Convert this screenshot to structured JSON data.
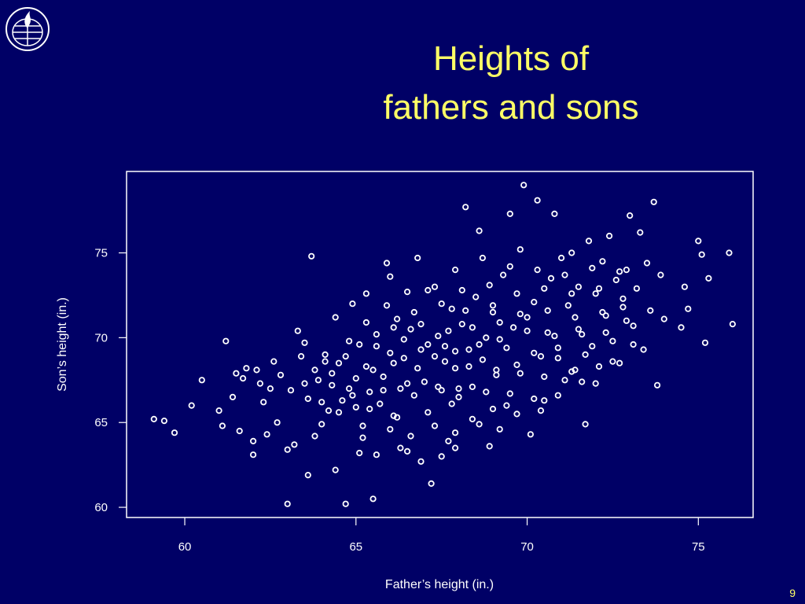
{
  "slide": {
    "title_line_1": "Heights of",
    "title_line_2": "fathers and sons",
    "page_number": "9",
    "logo_icon": "university-seal-icon",
    "background_color": "#000066",
    "title_color": "#ffff66",
    "point_color": "#ffffff"
  },
  "chart_data": {
    "type": "scatter",
    "xlabel": "Father’s height (in.)",
    "ylabel": "Son’s height (in.)",
    "xlim": [
      58.3,
      76.6
    ],
    "ylim": [
      59.4,
      79.8
    ],
    "xticks": [
      60,
      65,
      70,
      75
    ],
    "yticks": [
      60,
      65,
      70,
      75
    ],
    "grid": false,
    "legend": "none",
    "points": [
      [
        59.1,
        65.2
      ],
      [
        59.4,
        65.1
      ],
      [
        59.7,
        64.4
      ],
      [
        60.2,
        66.0
      ],
      [
        60.5,
        67.5
      ],
      [
        61.0,
        65.7
      ],
      [
        61.1,
        64.8
      ],
      [
        61.2,
        69.8
      ],
      [
        61.4,
        66.5
      ],
      [
        61.5,
        67.9
      ],
      [
        61.6,
        64.5
      ],
      [
        61.7,
        67.6
      ],
      [
        61.8,
        68.2
      ],
      [
        62.0,
        63.9
      ],
      [
        62.0,
        63.1
      ],
      [
        62.1,
        68.1
      ],
      [
        62.2,
        67.3
      ],
      [
        62.3,
        66.2
      ],
      [
        62.4,
        64.3
      ],
      [
        62.5,
        67.0
      ],
      [
        62.6,
        68.6
      ],
      [
        62.7,
        65.0
      ],
      [
        62.8,
        67.8
      ],
      [
        63.0,
        60.2
      ],
      [
        63.1,
        66.9
      ],
      [
        63.2,
        63.7
      ],
      [
        63.3,
        70.4
      ],
      [
        63.4,
        68.9
      ],
      [
        63.5,
        69.7
      ],
      [
        63.6,
        66.4
      ],
      [
        63.7,
        74.8
      ],
      [
        63.8,
        68.1
      ],
      [
        63.9,
        67.5
      ],
      [
        64.0,
        64.9
      ],
      [
        64.1,
        69.0
      ],
      [
        64.2,
        65.7
      ],
      [
        64.3,
        67.2
      ],
      [
        64.4,
        71.2
      ],
      [
        64.5,
        68.5
      ],
      [
        64.6,
        66.3
      ],
      [
        64.7,
        60.2
      ],
      [
        64.8,
        67.0
      ],
      [
        64.9,
        72.0
      ],
      [
        65.0,
        65.9
      ],
      [
        65.1,
        69.6
      ],
      [
        65.2,
        64.1
      ],
      [
        65.3,
        68.3
      ],
      [
        65.4,
        66.8
      ],
      [
        65.5,
        60.5
      ],
      [
        65.6,
        70.2
      ],
      [
        65.7,
        66.1
      ],
      [
        65.8,
        67.7
      ],
      [
        65.9,
        74.4
      ],
      [
        66.0,
        69.1
      ],
      [
        66.1,
        65.4
      ],
      [
        66.2,
        71.1
      ],
      [
        66.3,
        67.0
      ],
      [
        66.4,
        68.8
      ],
      [
        66.5,
        63.3
      ],
      [
        66.6,
        70.5
      ],
      [
        66.7,
        66.6
      ],
      [
        66.8,
        74.7
      ],
      [
        66.9,
        69.3
      ],
      [
        67.0,
        67.4
      ],
      [
        67.1,
        72.8
      ],
      [
        67.2,
        61.4
      ],
      [
        67.3,
        68.9
      ],
      [
        67.4,
        70.1
      ],
      [
        67.5,
        66.9
      ],
      [
        67.6,
        69.5
      ],
      [
        67.7,
        63.9
      ],
      [
        67.8,
        71.7
      ],
      [
        67.9,
        68.2
      ],
      [
        68.0,
        66.5
      ],
      [
        68.1,
        70.8
      ],
      [
        68.2,
        77.7
      ],
      [
        68.3,
        69.3
      ],
      [
        68.4,
        67.1
      ],
      [
        68.5,
        72.4
      ],
      [
        68.6,
        76.3
      ],
      [
        68.7,
        68.7
      ],
      [
        68.8,
        70.0
      ],
      [
        68.9,
        63.6
      ],
      [
        69.0,
        71.5
      ],
      [
        69.1,
        67.8
      ],
      [
        69.2,
        69.9
      ],
      [
        69.3,
        73.7
      ],
      [
        69.4,
        66.0
      ],
      [
        69.5,
        77.3
      ],
      [
        69.6,
        70.6
      ],
      [
        69.7,
        68.4
      ],
      [
        69.8,
        75.2
      ],
      [
        69.9,
        79.0
      ],
      [
        70.0,
        71.2
      ],
      [
        70.1,
        64.3
      ],
      [
        70.2,
        72.1
      ],
      [
        70.3,
        78.1
      ],
      [
        70.4,
        68.9
      ],
      [
        70.5,
        66.3
      ],
      [
        70.6,
        70.3
      ],
      [
        70.7,
        73.5
      ],
      [
        70.8,
        77.3
      ],
      [
        70.9,
        69.4
      ],
      [
        71.0,
        74.7
      ],
      [
        71.1,
        67.5
      ],
      [
        71.2,
        71.9
      ],
      [
        71.3,
        75.0
      ],
      [
        71.4,
        68.1
      ],
      [
        71.5,
        73.0
      ],
      [
        71.6,
        70.2
      ],
      [
        71.7,
        64.9
      ],
      [
        71.8,
        75.7
      ],
      [
        71.9,
        69.5
      ],
      [
        72.0,
        72.6
      ],
      [
        72.1,
        68.3
      ],
      [
        72.2,
        74.5
      ],
      [
        72.3,
        71.3
      ],
      [
        72.4,
        76.0
      ],
      [
        72.5,
        69.8
      ],
      [
        72.6,
        73.4
      ],
      [
        72.7,
        68.5
      ],
      [
        72.8,
        71.8
      ],
      [
        72.9,
        74.0
      ],
      [
        73.0,
        77.2
      ],
      [
        73.1,
        70.7
      ],
      [
        73.2,
        72.9
      ],
      [
        73.3,
        76.2
      ],
      [
        73.4,
        69.3
      ],
      [
        73.5,
        74.4
      ],
      [
        73.6,
        71.6
      ],
      [
        73.7,
        78.0
      ],
      [
        73.8,
        67.2
      ],
      [
        73.9,
        73.7
      ],
      [
        74.0,
        71.1
      ],
      [
        74.5,
        70.6
      ],
      [
        74.6,
        73.0
      ],
      [
        74.7,
        71.7
      ],
      [
        75.0,
        75.7
      ],
      [
        75.1,
        74.9
      ],
      [
        75.2,
        69.7
      ],
      [
        75.3,
        73.5
      ],
      [
        75.9,
        75.0
      ],
      [
        76.0,
        70.8
      ],
      [
        63.6,
        61.9
      ],
      [
        64.4,
        62.2
      ],
      [
        65.1,
        63.2
      ],
      [
        65.6,
        63.1
      ],
      [
        66.3,
        63.5
      ],
      [
        66.9,
        62.7
      ],
      [
        67.5,
        63.0
      ],
      [
        67.9,
        63.5
      ],
      [
        63.0,
        63.4
      ],
      [
        63.8,
        64.2
      ],
      [
        64.5,
        65.6
      ],
      [
        65.2,
        64.8
      ],
      [
        66.0,
        64.6
      ],
      [
        66.6,
        64.2
      ],
      [
        67.3,
        64.8
      ],
      [
        67.9,
        64.4
      ],
      [
        68.6,
        64.9
      ],
      [
        69.2,
        64.6
      ],
      [
        64.0,
        66.2
      ],
      [
        64.9,
        66.6
      ],
      [
        65.4,
        65.8
      ],
      [
        66.2,
        65.3
      ],
      [
        67.1,
        65.6
      ],
      [
        67.8,
        66.1
      ],
      [
        68.4,
        65.2
      ],
      [
        69.0,
        65.8
      ],
      [
        69.7,
        65.5
      ],
      [
        70.4,
        65.7
      ],
      [
        63.5,
        67.3
      ],
      [
        64.3,
        67.9
      ],
      [
        65.0,
        67.6
      ],
      [
        65.8,
        66.9
      ],
      [
        66.5,
        67.3
      ],
      [
        67.4,
        67.1
      ],
      [
        68.0,
        67.0
      ],
      [
        68.8,
        66.8
      ],
      [
        69.5,
        66.7
      ],
      [
        70.2,
        66.4
      ],
      [
        70.9,
        66.6
      ],
      [
        71.6,
        67.4
      ],
      [
        64.1,
        68.6
      ],
      [
        64.7,
        68.9
      ],
      [
        65.5,
        68.1
      ],
      [
        66.1,
        68.5
      ],
      [
        66.8,
        68.2
      ],
      [
        67.6,
        68.6
      ],
      [
        68.3,
        68.3
      ],
      [
        69.1,
        68.1
      ],
      [
        69.8,
        67.9
      ],
      [
        70.5,
        67.7
      ],
      [
        71.3,
        68.0
      ],
      [
        72.0,
        67.3
      ],
      [
        64.8,
        69.8
      ],
      [
        65.6,
        69.5
      ],
      [
        66.4,
        69.9
      ],
      [
        67.1,
        69.6
      ],
      [
        67.9,
        69.2
      ],
      [
        68.6,
        69.6
      ],
      [
        69.4,
        69.4
      ],
      [
        70.2,
        69.1
      ],
      [
        70.9,
        68.8
      ],
      [
        71.7,
        69.0
      ],
      [
        72.5,
        68.6
      ],
      [
        65.3,
        70.9
      ],
      [
        66.1,
        70.6
      ],
      [
        66.9,
        70.8
      ],
      [
        67.7,
        70.4
      ],
      [
        68.4,
        70.6
      ],
      [
        69.2,
        70.9
      ],
      [
        70.0,
        70.4
      ],
      [
        70.8,
        70.1
      ],
      [
        71.5,
        70.5
      ],
      [
        72.3,
        70.3
      ],
      [
        73.1,
        69.6
      ],
      [
        65.9,
        71.9
      ],
      [
        66.7,
        71.5
      ],
      [
        67.5,
        72.0
      ],
      [
        68.2,
        71.6
      ],
      [
        69.0,
        71.9
      ],
      [
        69.8,
        71.4
      ],
      [
        70.6,
        71.6
      ],
      [
        71.4,
        71.2
      ],
      [
        72.2,
        71.5
      ],
      [
        72.9,
        71.0
      ],
      [
        66.5,
        72.7
      ],
      [
        67.3,
        73.0
      ],
      [
        68.1,
        72.8
      ],
      [
        68.9,
        73.1
      ],
      [
        69.7,
        72.6
      ],
      [
        70.5,
        72.9
      ],
      [
        71.3,
        72.6
      ],
      [
        72.1,
        72.9
      ],
      [
        72.8,
        72.3
      ],
      [
        67.9,
        74.0
      ],
      [
        68.7,
        74.7
      ],
      [
        69.5,
        74.2
      ],
      [
        70.3,
        74.0
      ],
      [
        71.1,
        73.7
      ],
      [
        71.9,
        74.1
      ],
      [
        72.7,
        73.9
      ],
      [
        66.0,
        73.6
      ],
      [
        65.3,
        72.6
      ]
    ]
  }
}
